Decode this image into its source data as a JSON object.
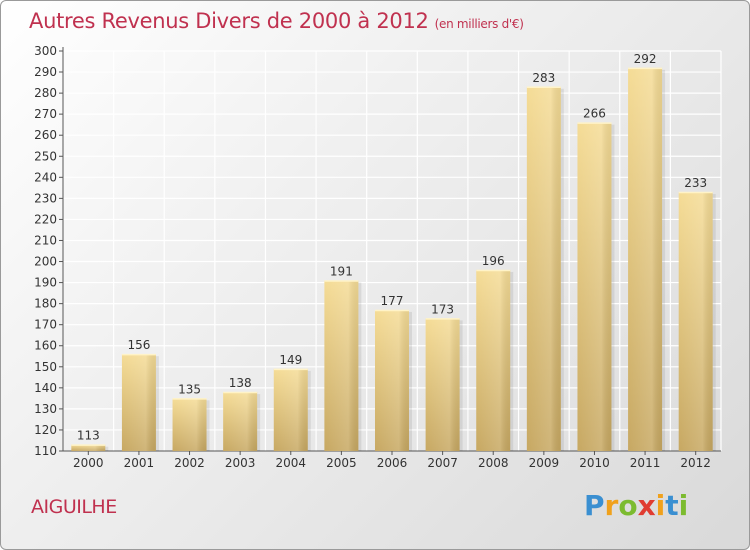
{
  "title": "Autres Revenus Divers de 2000 à 2012",
  "subtitle": "(en milliers d'€)",
  "place": "AIGUILHE",
  "brand": {
    "letters": [
      "P",
      "r",
      "o",
      "x",
      "i",
      "t",
      "i"
    ],
    "colors": [
      "#3a8fd1",
      "#f0a11c",
      "#7cbb2f",
      "#e03c31",
      "#f0a11c",
      "#3a8fd1",
      "#7cbb2f"
    ]
  },
  "colors": {
    "bar": "#e6c97c",
    "title": "#c0314f"
  },
  "chart_data": {
    "type": "bar",
    "categories": [
      "2000",
      "2001",
      "2002",
      "2003",
      "2004",
      "2005",
      "2006",
      "2007",
      "2008",
      "2009",
      "2010",
      "2011",
      "2012"
    ],
    "values": [
      113,
      156,
      135,
      138,
      149,
      191,
      177,
      173,
      196,
      283,
      266,
      292,
      233
    ],
    "ylim": [
      110,
      300
    ],
    "yticks": [
      110,
      120,
      130,
      140,
      150,
      160,
      170,
      180,
      190,
      200,
      210,
      220,
      230,
      240,
      250,
      260,
      270,
      280,
      290,
      300
    ],
    "grid": true,
    "legend": "none"
  }
}
